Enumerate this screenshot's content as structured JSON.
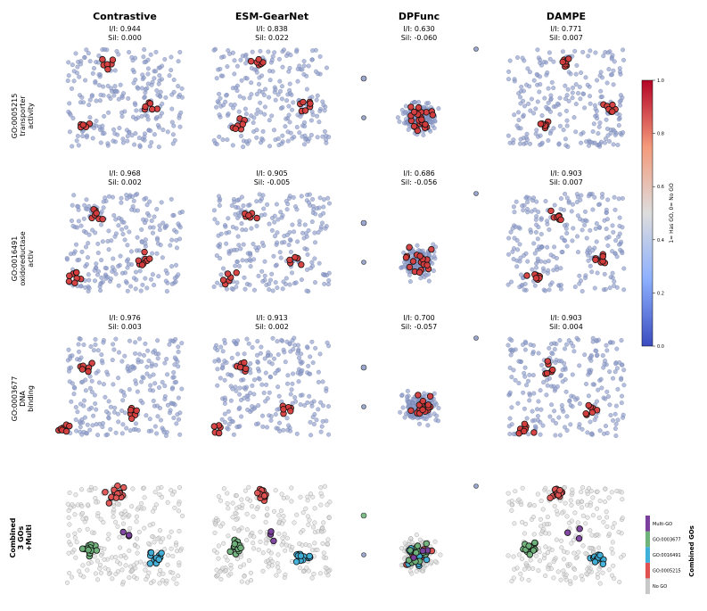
{
  "chart_data": {
    "type": "scatter",
    "description_kind": "embedding-projection grid (rows = GO terms, columns = methods)",
    "columns": [
      {
        "name": "Contrastive"
      },
      {
        "name": "ESM-GearNet"
      },
      {
        "name": "DPFunc"
      },
      {
        "name": "DAMPE"
      }
    ],
    "rows": [
      {
        "go": "GO:0005215",
        "desc1": "transporter",
        "desc2": "activity",
        "metrics": [
          {
            "ii": "I/I: 0.944",
            "sil": "Sil: 0.000"
          },
          {
            "ii": "I/I: 0.838",
            "sil": "Sil: 0.022"
          },
          {
            "ii": "I/I: 0.630",
            "sil": "Sil: -0.060"
          },
          {
            "ii": "I/I: 0.771",
            "sil": "Sil: 0.007"
          }
        ]
      },
      {
        "go": "GO:0016491",
        "desc1": "oxidoreductase",
        "desc2": "activ",
        "metrics": [
          {
            "ii": "I/I: 0.968",
            "sil": "Sil: 0.002"
          },
          {
            "ii": "I/I: 0.905",
            "sil": "Sil: -0.005"
          },
          {
            "ii": "I/I: 0.686",
            "sil": "Sil: -0.056"
          },
          {
            "ii": "I/I: 0.903",
            "sil": "Sil: 0.007"
          }
        ]
      },
      {
        "go": "GO:0003677",
        "desc1": "DNA",
        "desc2": "binding",
        "metrics": [
          {
            "ii": "I/I: 0.976",
            "sil": "Sil: 0.003"
          },
          {
            "ii": "I/I: 0.913",
            "sil": "Sil: 0.002"
          },
          {
            "ii": "I/I: 0.700",
            "sil": "Sil: -0.057"
          },
          {
            "ii": "I/I: 0.903",
            "sil": "Sil: 0.004"
          }
        ]
      }
    ],
    "combined_row": {
      "label1": "Combined",
      "label2": "3 GOs",
      "label3": "+Multi"
    },
    "colorbar": {
      "label": "1= Has GO, 0= No GO",
      "ticks": [
        "0.0",
        "0.2",
        "0.4",
        "0.6",
        "0.8",
        "1.0"
      ],
      "tick_values": [
        0,
        0.2,
        0.4,
        0.6,
        0.8,
        1.0
      ],
      "range": [
        0,
        1
      ],
      "low_color": "#3b4cc0",
      "mid_color": "#dddddd",
      "high_color": "#b40426"
    },
    "combined_legend": {
      "label": "Combined GOs",
      "categories": [
        {
          "name": "No GO",
          "color": "#c8c8c8"
        },
        {
          "name": "GO:0005215",
          "color": "#e05252"
        },
        {
          "name": "GO:0016491",
          "color": "#3fb0d9"
        },
        {
          "name": "GO:0003677",
          "color": "#6fb27a"
        },
        {
          "name": "Multi-GO",
          "color": "#7b3f9e"
        }
      ]
    },
    "point_colors": {
      "no_go": "#8f9cc9",
      "has_go": "#d63c3c",
      "combined_no_go": "#dcdcdc",
      "go_0005215": "#e05252",
      "go_0016491": "#3fb0d9",
      "go_0003677": "#6fb27a",
      "multi": "#7b3f9e"
    }
  }
}
